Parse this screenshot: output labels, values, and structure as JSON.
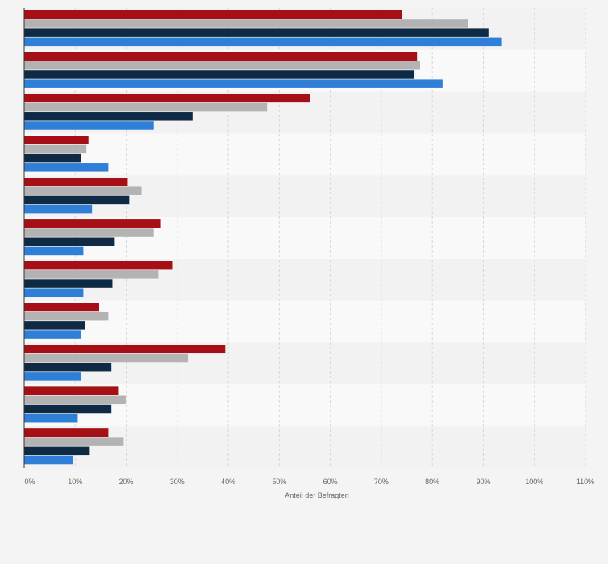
{
  "chart_data": {
    "type": "bar",
    "orientation": "horizontal",
    "xlabel": "Anteil der Befragten",
    "ylabel": "",
    "xlim": [
      0,
      110
    ],
    "x_ticks": [
      {
        "value": 0,
        "label": "0%"
      },
      {
        "value": 10,
        "label": "10%"
      },
      {
        "value": 20,
        "label": "20%"
      },
      {
        "value": 30,
        "label": "30%"
      },
      {
        "value": 40,
        "label": "40%"
      },
      {
        "value": 50,
        "label": "50%"
      },
      {
        "value": 60,
        "label": "60%"
      },
      {
        "value": 70,
        "label": "70%"
      },
      {
        "value": 80,
        "label": "80%"
      },
      {
        "value": 90,
        "label": "90%"
      },
      {
        "value": 100,
        "label": "100%"
      },
      {
        "value": 110,
        "label": "110%"
      }
    ],
    "grid": true,
    "legend": "none",
    "categories": [
      "",
      "",
      "",
      "",
      "",
      "",
      "",
      "",
      "",
      "",
      ""
    ],
    "series": [
      {
        "color": "#a50f15",
        "values": [
          74,
          77,
          56,
          12.6,
          20.3,
          26.8,
          29,
          14.7,
          39.4,
          18.4,
          16.5
        ]
      },
      {
        "color": "#b3b3b3",
        "values": [
          87,
          77.6,
          47.6,
          12.2,
          23,
          25.4,
          26.3,
          16.5,
          32.1,
          19.9,
          19.5
        ]
      },
      {
        "color": "#0f2a44",
        "values": [
          91,
          76.5,
          33,
          11.1,
          20.6,
          17.6,
          17.3,
          12,
          17.1,
          17.1,
          12.7
        ]
      },
      {
        "color": "#2f7ed8",
        "values": [
          93.5,
          82,
          25.4,
          16.5,
          13.3,
          11.6,
          11.6,
          11.1,
          11.1,
          10.5,
          9.5
        ]
      }
    ]
  }
}
